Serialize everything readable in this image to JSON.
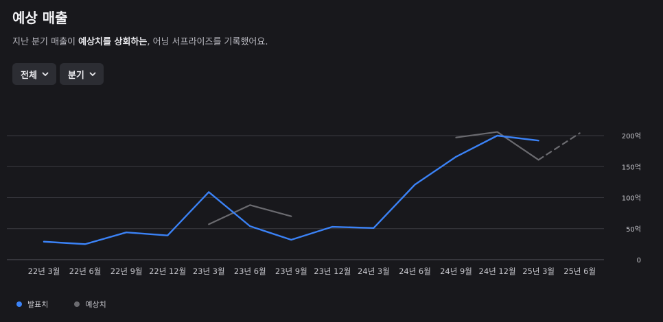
{
  "header": {
    "title": "예상 매출",
    "subtitle_pre": "지난 분기 매출이 ",
    "subtitle_bold": "예상치를 상회하는",
    "subtitle_post": ", 어닝 서프라이즈를 기록했어요."
  },
  "filters": [
    {
      "label": "전체",
      "icon": "chevron-down-icon"
    },
    {
      "label": "분기",
      "icon": "chevron-down-icon"
    }
  ],
  "colors": {
    "actual": "#3b82f6",
    "estimate": "#6b6b70",
    "grid": "#3a3a40",
    "axis_text": "#c7c7cd"
  },
  "chart_data": {
    "type": "line",
    "categories": [
      "22년 3월",
      "22년 6월",
      "22년 9월",
      "22년 12월",
      "23년 3월",
      "23년 6월",
      "23년 9월",
      "23년 12월",
      "24년 3월",
      "24년 6월",
      "24년 9월",
      "24년 12월",
      "25년 3월",
      "25년 6월"
    ],
    "y_ticks": [
      {
        "value": 0,
        "label": "0"
      },
      {
        "value": 50,
        "label": "50억"
      },
      {
        "value": 100,
        "label": "100억"
      },
      {
        "value": 150,
        "label": "150억"
      },
      {
        "value": 200,
        "label": "200억"
      }
    ],
    "ylim": [
      0,
      200
    ],
    "y_axis_side": "right",
    "grid": true,
    "legend_position": "bottom-left",
    "series": [
      {
        "name": "발표치",
        "color": "#3b82f6",
        "style": "solid",
        "values": [
          29,
          25,
          44,
          39,
          109,
          54,
          32,
          53,
          51,
          121,
          166,
          200,
          192,
          null
        ]
      },
      {
        "name": "예상치",
        "color": "#6b6b70",
        "segments": [
          {
            "style": "solid",
            "points": [
              [
                4,
                57
              ],
              [
                5,
                88
              ],
              [
                6,
                70
              ]
            ]
          },
          {
            "style": "solid",
            "points": [
              [
                10,
                197
              ],
              [
                11,
                206
              ],
              [
                12,
                161
              ]
            ]
          },
          {
            "style": "dashed",
            "points": [
              [
                12,
                161
              ],
              [
                13,
                204
              ]
            ]
          }
        ]
      }
    ]
  }
}
